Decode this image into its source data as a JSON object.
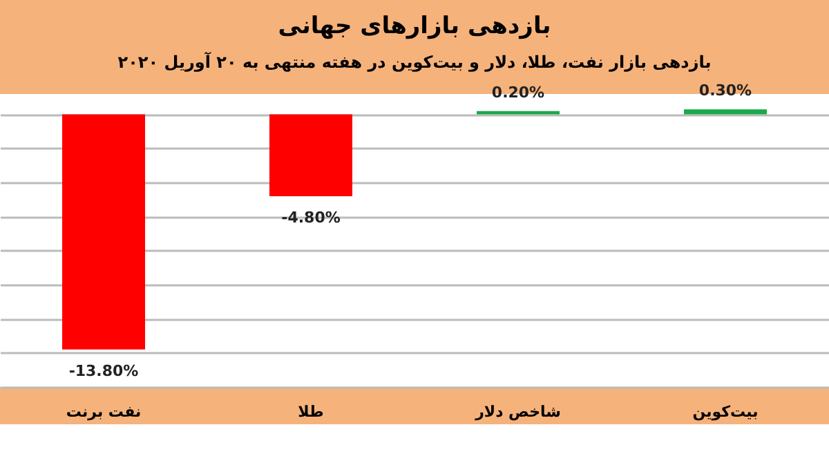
{
  "chart_data": {
    "type": "bar",
    "title": "بازدهی بازارهای جهانی",
    "subtitle": "بازدهی بازار نفت، طلا، دلار و بیت‌کوین در هفته منتهی به ۲۰ آوریل ۲۰۲۰",
    "categories": [
      "نفت برنت",
      "طلا",
      "شاخص دلار",
      "بیت‌کوین"
    ],
    "values": [
      -13.8,
      -4.8,
      0.2,
      0.3
    ],
    "colors": [
      "#ff0000",
      "#ff0000",
      "#1aaa4a",
      "#1aaa4a"
    ],
    "value_labels": [
      "-13.80%",
      "-4.80%",
      "0.20%",
      "0.30%"
    ],
    "ylim": [
      -16,
      1.2
    ],
    "tick_labels": "x",
    "grid": "y",
    "legend": false
  }
}
